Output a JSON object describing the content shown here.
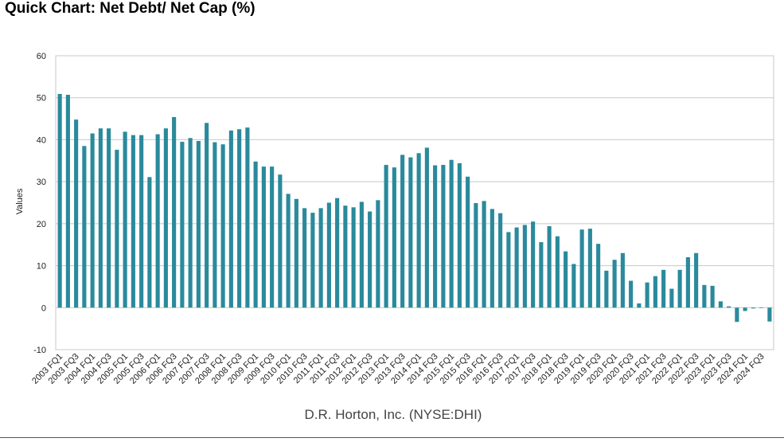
{
  "title": "Quick Chart: Net Debt/ Net Cap (%)",
  "colors": {
    "bar": "#2a8a9c",
    "grid": "#c8c8c8",
    "axis": "#999999",
    "text": "#222222"
  },
  "chart_data": {
    "type": "bar",
    "title": "Quick Chart: Net Debt/ Net Cap (%)",
    "xlabel": "D.R. Horton, Inc. (NYSE:DHI)",
    "ylabel": "Values",
    "ylim": [
      -10,
      60
    ],
    "yticks": [
      -10,
      0,
      10,
      20,
      30,
      40,
      50,
      60
    ],
    "grid": true,
    "tick_labels": [
      {
        "index": 0,
        "label": "2003 FQ1"
      },
      {
        "index": 2,
        "label": "2003 FQ3"
      },
      {
        "index": 4,
        "label": "2004 FQ1"
      },
      {
        "index": 6,
        "label": "2004 FQ3"
      },
      {
        "index": 8,
        "label": "2005 FQ1"
      },
      {
        "index": 10,
        "label": "2005 FQ3"
      },
      {
        "index": 12,
        "label": "2006 FQ1"
      },
      {
        "index": 14,
        "label": "2006 FQ3"
      },
      {
        "index": 16,
        "label": "2007 FQ1"
      },
      {
        "index": 18,
        "label": "2007 FQ3"
      },
      {
        "index": 20,
        "label": "2008 FQ1"
      },
      {
        "index": 22,
        "label": "2008 FQ3"
      },
      {
        "index": 24,
        "label": "2009 FQ1"
      },
      {
        "index": 26,
        "label": "2009 FQ3"
      },
      {
        "index": 28,
        "label": "2010 FQ1"
      },
      {
        "index": 30,
        "label": "2010 FQ3"
      },
      {
        "index": 32,
        "label": "2011 FQ1"
      },
      {
        "index": 34,
        "label": "2011 FQ3"
      },
      {
        "index": 36,
        "label": "2012 FQ1"
      },
      {
        "index": 38,
        "label": "2012 FQ3"
      },
      {
        "index": 40,
        "label": "2013 FQ1"
      },
      {
        "index": 42,
        "label": "2013 FQ3"
      },
      {
        "index": 44,
        "label": "2014 FQ1"
      },
      {
        "index": 46,
        "label": "2014 FQ3"
      },
      {
        "index": 48,
        "label": "2015 FQ1"
      },
      {
        "index": 50,
        "label": "2015 FQ3"
      },
      {
        "index": 52,
        "label": "2016 FQ1"
      },
      {
        "index": 54,
        "label": "2016 FQ3"
      },
      {
        "index": 56,
        "label": "2017 FQ1"
      },
      {
        "index": 58,
        "label": "2017 FQ3"
      },
      {
        "index": 60,
        "label": "2018 FQ1"
      },
      {
        "index": 62,
        "label": "2018 FQ3"
      },
      {
        "index": 64,
        "label": "2019 FQ1"
      },
      {
        "index": 66,
        "label": "2019 FQ3"
      },
      {
        "index": 68,
        "label": "2020 FQ1"
      },
      {
        "index": 70,
        "label": "2020 FQ3"
      },
      {
        "index": 72,
        "label": "2021 FQ1"
      },
      {
        "index": 74,
        "label": "2021 FQ3"
      },
      {
        "index": 76,
        "label": "2022 FQ1"
      },
      {
        "index": 78,
        "label": "2022 FQ3"
      },
      {
        "index": 80,
        "label": "2023 FQ1"
      },
      {
        "index": 82,
        "label": "2023 FQ3"
      },
      {
        "index": 84,
        "label": "2024 FQ1"
      },
      {
        "index": 86,
        "label": "2024 FQ3"
      }
    ],
    "values": [
      50.9,
      50.7,
      44.8,
      38.5,
      41.5,
      42.7,
      42.7,
      37.6,
      41.9,
      41.1,
      41.1,
      31.1,
      41.3,
      42.7,
      45.4,
      39.5,
      40.4,
      39.7,
      44.0,
      39.4,
      38.9,
      42.2,
      42.5,
      42.9,
      34.8,
      33.6,
      33.6,
      31.7,
      27.1,
      25.9,
      23.7,
      22.6,
      23.7,
      25.0,
      26.1,
      24.3,
      23.9,
      25.2,
      22.9,
      25.6,
      34.0,
      33.4,
      36.4,
      35.8,
      36.8,
      38.1,
      33.9,
      34.0,
      35.2,
      34.4,
      31.2,
      24.9,
      25.4,
      23.5,
      22.5,
      18.0,
      19.1,
      19.7,
      20.5,
      15.6,
      19.4,
      17.0,
      13.4,
      10.4,
      18.6,
      18.8,
      15.2,
      8.8,
      11.4,
      13.0,
      6.4,
      1.0,
      6.0,
      7.5,
      9.0,
      4.5,
      9.0,
      12.0,
      13.0,
      5.4,
      5.2,
      1.5,
      0.3,
      -3.4,
      -0.8,
      -0.2,
      -0.1,
      -3.3
    ]
  }
}
